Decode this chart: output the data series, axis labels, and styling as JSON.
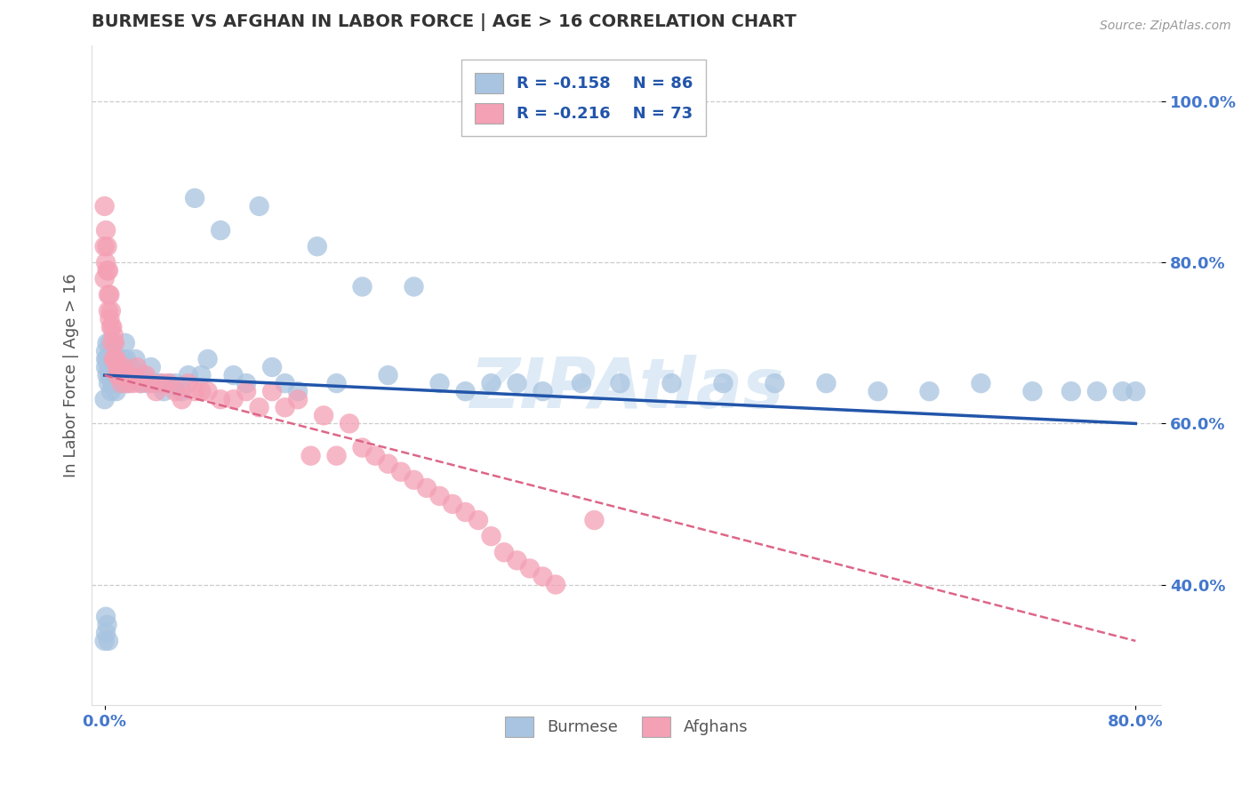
{
  "title": "BURMESE VS AFGHAN IN LABOR FORCE | AGE > 16 CORRELATION CHART",
  "source": "Source: ZipAtlas.com",
  "ylabel": "In Labor Force | Age > 16",
  "xlim": [
    -0.01,
    0.82
  ],
  "ylim": [
    0.25,
    1.07
  ],
  "xticks": [
    0.0,
    0.8
  ],
  "xticklabels": [
    "0.0%",
    "80.0%"
  ],
  "yticks": [
    0.4,
    0.6,
    0.8,
    1.0
  ],
  "yticklabels": [
    "40.0%",
    "60.0%",
    "80.0%",
    "100.0%"
  ],
  "legend_r1": "-0.158",
  "legend_n1": "86",
  "legend_r2": "-0.216",
  "legend_n2": "73",
  "burmese_color": "#a8c4e0",
  "afghan_color": "#f4a0b5",
  "burmese_line_color": "#2255aa",
  "afghan_line_color": "#dd6688",
  "legend_text_color": "#2255aa",
  "title_color": "#333333",
  "axis_label_color": "#555555",
  "tick_color": "#4477cc",
  "grid_color": "#cccccc",
  "watermark": "ZIPAtlas",
  "watermark_color": "#c8dff0",
  "source_color": "#999999",
  "burmese_scatter_x": [
    0.001,
    0.001,
    0.001,
    0.002,
    0.002,
    0.002,
    0.003,
    0.003,
    0.004,
    0.004,
    0.004,
    0.005,
    0.005,
    0.006,
    0.006,
    0.007,
    0.007,
    0.008,
    0.008,
    0.009,
    0.009,
    0.01,
    0.01,
    0.011,
    0.012,
    0.013,
    0.014,
    0.015,
    0.016,
    0.017,
    0.018,
    0.02,
    0.022,
    0.024,
    0.026,
    0.028,
    0.03,
    0.033,
    0.036,
    0.04,
    0.043,
    0.046,
    0.05,
    0.055,
    0.06,
    0.065,
    0.07,
    0.075,
    0.08,
    0.09,
    0.1,
    0.11,
    0.12,
    0.13,
    0.14,
    0.15,
    0.165,
    0.18,
    0.2,
    0.22,
    0.24,
    0.26,
    0.28,
    0.3,
    0.32,
    0.34,
    0.37,
    0.4,
    0.44,
    0.48,
    0.52,
    0.56,
    0.6,
    0.64,
    0.68,
    0.72,
    0.75,
    0.77,
    0.79,
    0.8,
    0.0,
    0.0,
    0.001,
    0.001,
    0.002,
    0.003
  ],
  "burmese_scatter_y": [
    0.67,
    0.69,
    0.68,
    0.66,
    0.68,
    0.7,
    0.65,
    0.67,
    0.66,
    0.68,
    0.7,
    0.64,
    0.67,
    0.65,
    0.68,
    0.66,
    0.7,
    0.65,
    0.68,
    0.64,
    0.67,
    0.65,
    0.68,
    0.66,
    0.67,
    0.65,
    0.68,
    0.66,
    0.7,
    0.68,
    0.65,
    0.67,
    0.66,
    0.68,
    0.66,
    0.65,
    0.66,
    0.65,
    0.67,
    0.65,
    0.65,
    0.64,
    0.65,
    0.65,
    0.64,
    0.66,
    0.88,
    0.66,
    0.68,
    0.84,
    0.66,
    0.65,
    0.87,
    0.67,
    0.65,
    0.64,
    0.82,
    0.65,
    0.77,
    0.66,
    0.77,
    0.65,
    0.64,
    0.65,
    0.65,
    0.64,
    0.65,
    0.65,
    0.65,
    0.65,
    0.65,
    0.65,
    0.64,
    0.64,
    0.65,
    0.64,
    0.64,
    0.64,
    0.64,
    0.64,
    0.63,
    0.33,
    0.34,
    0.36,
    0.35,
    0.33
  ],
  "afghan_scatter_x": [
    0.0,
    0.0,
    0.0,
    0.001,
    0.001,
    0.002,
    0.002,
    0.003,
    0.003,
    0.003,
    0.004,
    0.004,
    0.005,
    0.005,
    0.006,
    0.006,
    0.007,
    0.007,
    0.008,
    0.008,
    0.009,
    0.01,
    0.01,
    0.011,
    0.012,
    0.013,
    0.014,
    0.015,
    0.016,
    0.018,
    0.02,
    0.022,
    0.025,
    0.028,
    0.032,
    0.036,
    0.04,
    0.045,
    0.05,
    0.055,
    0.06,
    0.065,
    0.07,
    0.075,
    0.08,
    0.09,
    0.1,
    0.11,
    0.12,
    0.13,
    0.14,
    0.15,
    0.16,
    0.17,
    0.18,
    0.19,
    0.2,
    0.21,
    0.22,
    0.23,
    0.24,
    0.25,
    0.26,
    0.27,
    0.28,
    0.29,
    0.3,
    0.31,
    0.32,
    0.33,
    0.34,
    0.35,
    0.38
  ],
  "afghan_scatter_y": [
    0.87,
    0.82,
    0.78,
    0.84,
    0.8,
    0.79,
    0.82,
    0.76,
    0.79,
    0.74,
    0.73,
    0.76,
    0.72,
    0.74,
    0.7,
    0.72,
    0.68,
    0.71,
    0.68,
    0.7,
    0.68,
    0.67,
    0.66,
    0.67,
    0.66,
    0.65,
    0.66,
    0.67,
    0.66,
    0.65,
    0.66,
    0.65,
    0.67,
    0.65,
    0.66,
    0.65,
    0.64,
    0.65,
    0.65,
    0.64,
    0.63,
    0.65,
    0.64,
    0.64,
    0.64,
    0.63,
    0.63,
    0.64,
    0.62,
    0.64,
    0.62,
    0.63,
    0.56,
    0.61,
    0.56,
    0.6,
    0.57,
    0.56,
    0.55,
    0.54,
    0.53,
    0.52,
    0.51,
    0.5,
    0.49,
    0.48,
    0.46,
    0.44,
    0.43,
    0.42,
    0.41,
    0.4,
    0.48
  ],
  "burmese_line_x0": 0.0,
  "burmese_line_x1": 0.8,
  "burmese_line_y0": 0.66,
  "burmese_line_y1": 0.6,
  "afghan_line_x0": 0.0,
  "afghan_line_x1": 0.8,
  "afghan_line_y0": 0.66,
  "afghan_line_y1": 0.33
}
